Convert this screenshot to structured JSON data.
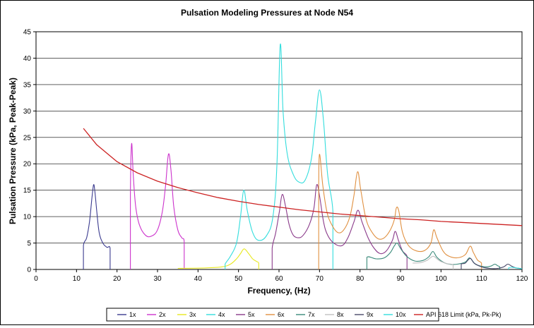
{
  "chart_data": {
    "type": "line",
    "title": "Pulsation Modeling Pressures at Node N54",
    "xlabel": "Frequency, (Hz)",
    "ylabel": "Pulsation Pressure (kPa, Peak-Peak)",
    "xlim": [
      0,
      120
    ],
    "ylim": [
      0,
      45
    ],
    "x_ticks": [
      "0",
      "10",
      "20",
      "30",
      "40",
      "50",
      "60",
      "70",
      "80",
      "90",
      "100",
      "110",
      "120"
    ],
    "y_ticks": [
      "0",
      "5",
      "10",
      "15",
      "20",
      "25",
      "30",
      "35",
      "40",
      "45"
    ],
    "grid": "horizontal",
    "legend_position": "bottom",
    "series": [
      {
        "name": "1x",
        "color": "#3b3b8f",
        "x": [
          11.7,
          11.7,
          12.5,
          13.2,
          13.8,
          14.2,
          14.5,
          15.0,
          15.6,
          16.5,
          17.5,
          18.3,
          18.3
        ],
        "y": [
          0,
          4.5,
          6.0,
          9.0,
          13.5,
          16.0,
          15.0,
          11.0,
          7.0,
          5.0,
          4.2,
          4.0,
          0
        ]
      },
      {
        "name": "2x",
        "color": "#cc33cc",
        "x": [
          23.3,
          23.3,
          23.6,
          24.0,
          24.6,
          25.5,
          27.0,
          28.5,
          30.0,
          31.2,
          32.0,
          32.7,
          33.3,
          34.0,
          35.0,
          36.0,
          36.6,
          36.6
        ],
        "y": [
          0,
          14.0,
          23.8,
          18.0,
          12.0,
          8.5,
          6.5,
          6.3,
          7.5,
          11.0,
          16.0,
          21.8,
          19.0,
          12.0,
          7.5,
          6.0,
          5.2,
          0
        ]
      },
      {
        "name": "3x",
        "color": "#e8e820",
        "x": [
          35.0,
          42.0,
          46.0,
          48.0,
          49.5,
          50.5,
          51.4,
          52.5,
          53.5,
          54.5,
          55.0,
          55.0
        ],
        "y": [
          0.2,
          0.3,
          0.5,
          1.0,
          2.0,
          3.0,
          3.9,
          3.0,
          2.0,
          1.5,
          1.2,
          0
        ]
      },
      {
        "name": "4x",
        "color": "#33dddd",
        "x": [
          46.7,
          46.7,
          48.0,
          49.5,
          50.5,
          51.3,
          52.2,
          53.5,
          55.0,
          57.0,
          58.5,
          59.5,
          60.3,
          61.0,
          62.0,
          63.5,
          65.0,
          66.5,
          68.0,
          69.0,
          70.0,
          71.0,
          72.0,
          73.3,
          73.3
        ],
        "y": [
          0,
          1.0,
          2.5,
          5.0,
          10.0,
          15.0,
          11.0,
          7.0,
          5.5,
          6.5,
          10.0,
          20.0,
          42.5,
          30.0,
          22.0,
          18.0,
          16.5,
          17.0,
          21.0,
          28.0,
          34.0,
          28.0,
          18.0,
          11.0,
          0
        ]
      },
      {
        "name": "5x",
        "color": "#8a3a8a",
        "x": [
          58.3,
          58.3,
          59.2,
          60.1,
          60.8,
          61.6,
          62.5,
          63.5,
          64.8,
          66.0,
          67.5,
          68.6,
          69.3,
          70.0,
          71.0,
          72.0,
          73.5,
          75.5,
          77.0,
          78.5,
          79.5,
          80.5,
          82.0,
          83.5,
          85.0,
          86.5,
          88.0,
          88.7,
          89.5,
          90.5,
          91.6,
          91.6
        ],
        "y": [
          0,
          4.0,
          7.0,
          11.0,
          14.2,
          12.0,
          8.5,
          6.5,
          6.0,
          6.5,
          8.5,
          11.5,
          16.0,
          14.0,
          9.0,
          6.5,
          5.0,
          4.5,
          6.0,
          9.0,
          11.2,
          9.0,
          6.0,
          4.0,
          3.0,
          3.5,
          5.5,
          7.2,
          5.5,
          3.5,
          2.5,
          0
        ]
      },
      {
        "name": "6x",
        "color": "#e09040",
        "x": [
          69.8,
          69.8,
          70.0,
          70.8,
          71.8,
          73.0,
          74.5,
          76.0,
          77.5,
          78.5,
          79.4,
          80.2,
          81.5,
          83.0,
          84.5,
          86.0,
          87.5,
          88.5,
          89.0,
          89.6,
          90.5,
          92.0,
          94.0,
          96.0,
          97.5,
          98.2,
          99.0,
          100.5,
          102.0,
          104.0,
          106.0,
          107.2,
          108.0,
          109.0,
          110.0,
          110.0
        ],
        "y": [
          0,
          15.0,
          21.8,
          16.0,
          11.0,
          8.5,
          7.0,
          7.5,
          10.0,
          14.0,
          18.5,
          15.0,
          9.5,
          7.0,
          5.8,
          6.0,
          7.5,
          9.5,
          11.7,
          11.0,
          7.0,
          4.5,
          3.5,
          3.6,
          5.0,
          7.5,
          6.0,
          3.5,
          2.5,
          2.2,
          2.8,
          4.4,
          3.2,
          1.8,
          1.2,
          0
        ]
      },
      {
        "name": "7x",
        "color": "#3a8a7a",
        "x": [
          81.7,
          81.7,
          84.0,
          86.0,
          87.5,
          88.5,
          89.2,
          90.0,
          91.5,
          93.5,
          95.5,
          97.0,
          98.0,
          99.0,
          100.5,
          102.0,
          104.0,
          106.0,
          107.0,
          107.8,
          108.5,
          110.0,
          111.5,
          112.5,
          113.3,
          114.0,
          114.5,
          114.5
        ],
        "y": [
          0,
          2.3,
          2.0,
          2.2,
          3.2,
          4.5,
          5.0,
          4.0,
          2.5,
          1.6,
          1.7,
          2.4,
          3.4,
          2.3,
          1.4,
          1.0,
          1.0,
          1.4,
          2.2,
          1.6,
          1.0,
          0.6,
          0.5,
          0.7,
          1.0,
          0.7,
          0.5,
          0
        ]
      },
      {
        "name": "8x",
        "color": "#c0c0c0",
        "x": [
          93.0,
          95.0,
          96.5,
          98.0,
          99.0,
          100.0,
          101.5,
          103.0,
          103.0
        ],
        "y": [
          1.2,
          1.3,
          1.7,
          2.5,
          2.0,
          1.5,
          1.1,
          0.9,
          0
        ]
      },
      {
        "name": "9x",
        "color": "#4a4a6a",
        "x": [
          105.0,
          105.0,
          106.0,
          107.2,
          108.2,
          110.0,
          112.0,
          114.0,
          115.5,
          116.5,
          117.5,
          118.5,
          119.5,
          120.0
        ],
        "y": [
          0,
          1.0,
          1.2,
          2.1,
          1.2,
          0.5,
          0.2,
          0.2,
          0.5,
          1.0,
          0.6,
          0.3,
          0.2,
          0.1
        ]
      },
      {
        "name": "10x",
        "color": "#33dddd",
        "x": [
          116.7,
          116.7,
          117.5,
          118.5,
          119.3,
          120.0
        ],
        "y": [
          0,
          0.3,
          0.4,
          0.3,
          0.2,
          0.1
        ]
      },
      {
        "name": "API 618 Limit  (kPa, Pk-Pk)",
        "color": "#cc2222",
        "x": [
          11.7,
          15,
          20,
          25,
          30,
          35,
          40,
          45,
          50,
          55,
          60,
          65,
          70,
          75,
          80,
          85,
          90,
          95,
          100,
          105,
          110,
          115,
          120
        ],
        "y": [
          26.7,
          23.6,
          20.4,
          18.3,
          16.7,
          15.5,
          14.5,
          13.6,
          12.9,
          12.3,
          11.8,
          11.3,
          10.9,
          10.5,
          10.2,
          9.9,
          9.6,
          9.4,
          9.1,
          8.9,
          8.7,
          8.5,
          8.3
        ]
      }
    ]
  }
}
